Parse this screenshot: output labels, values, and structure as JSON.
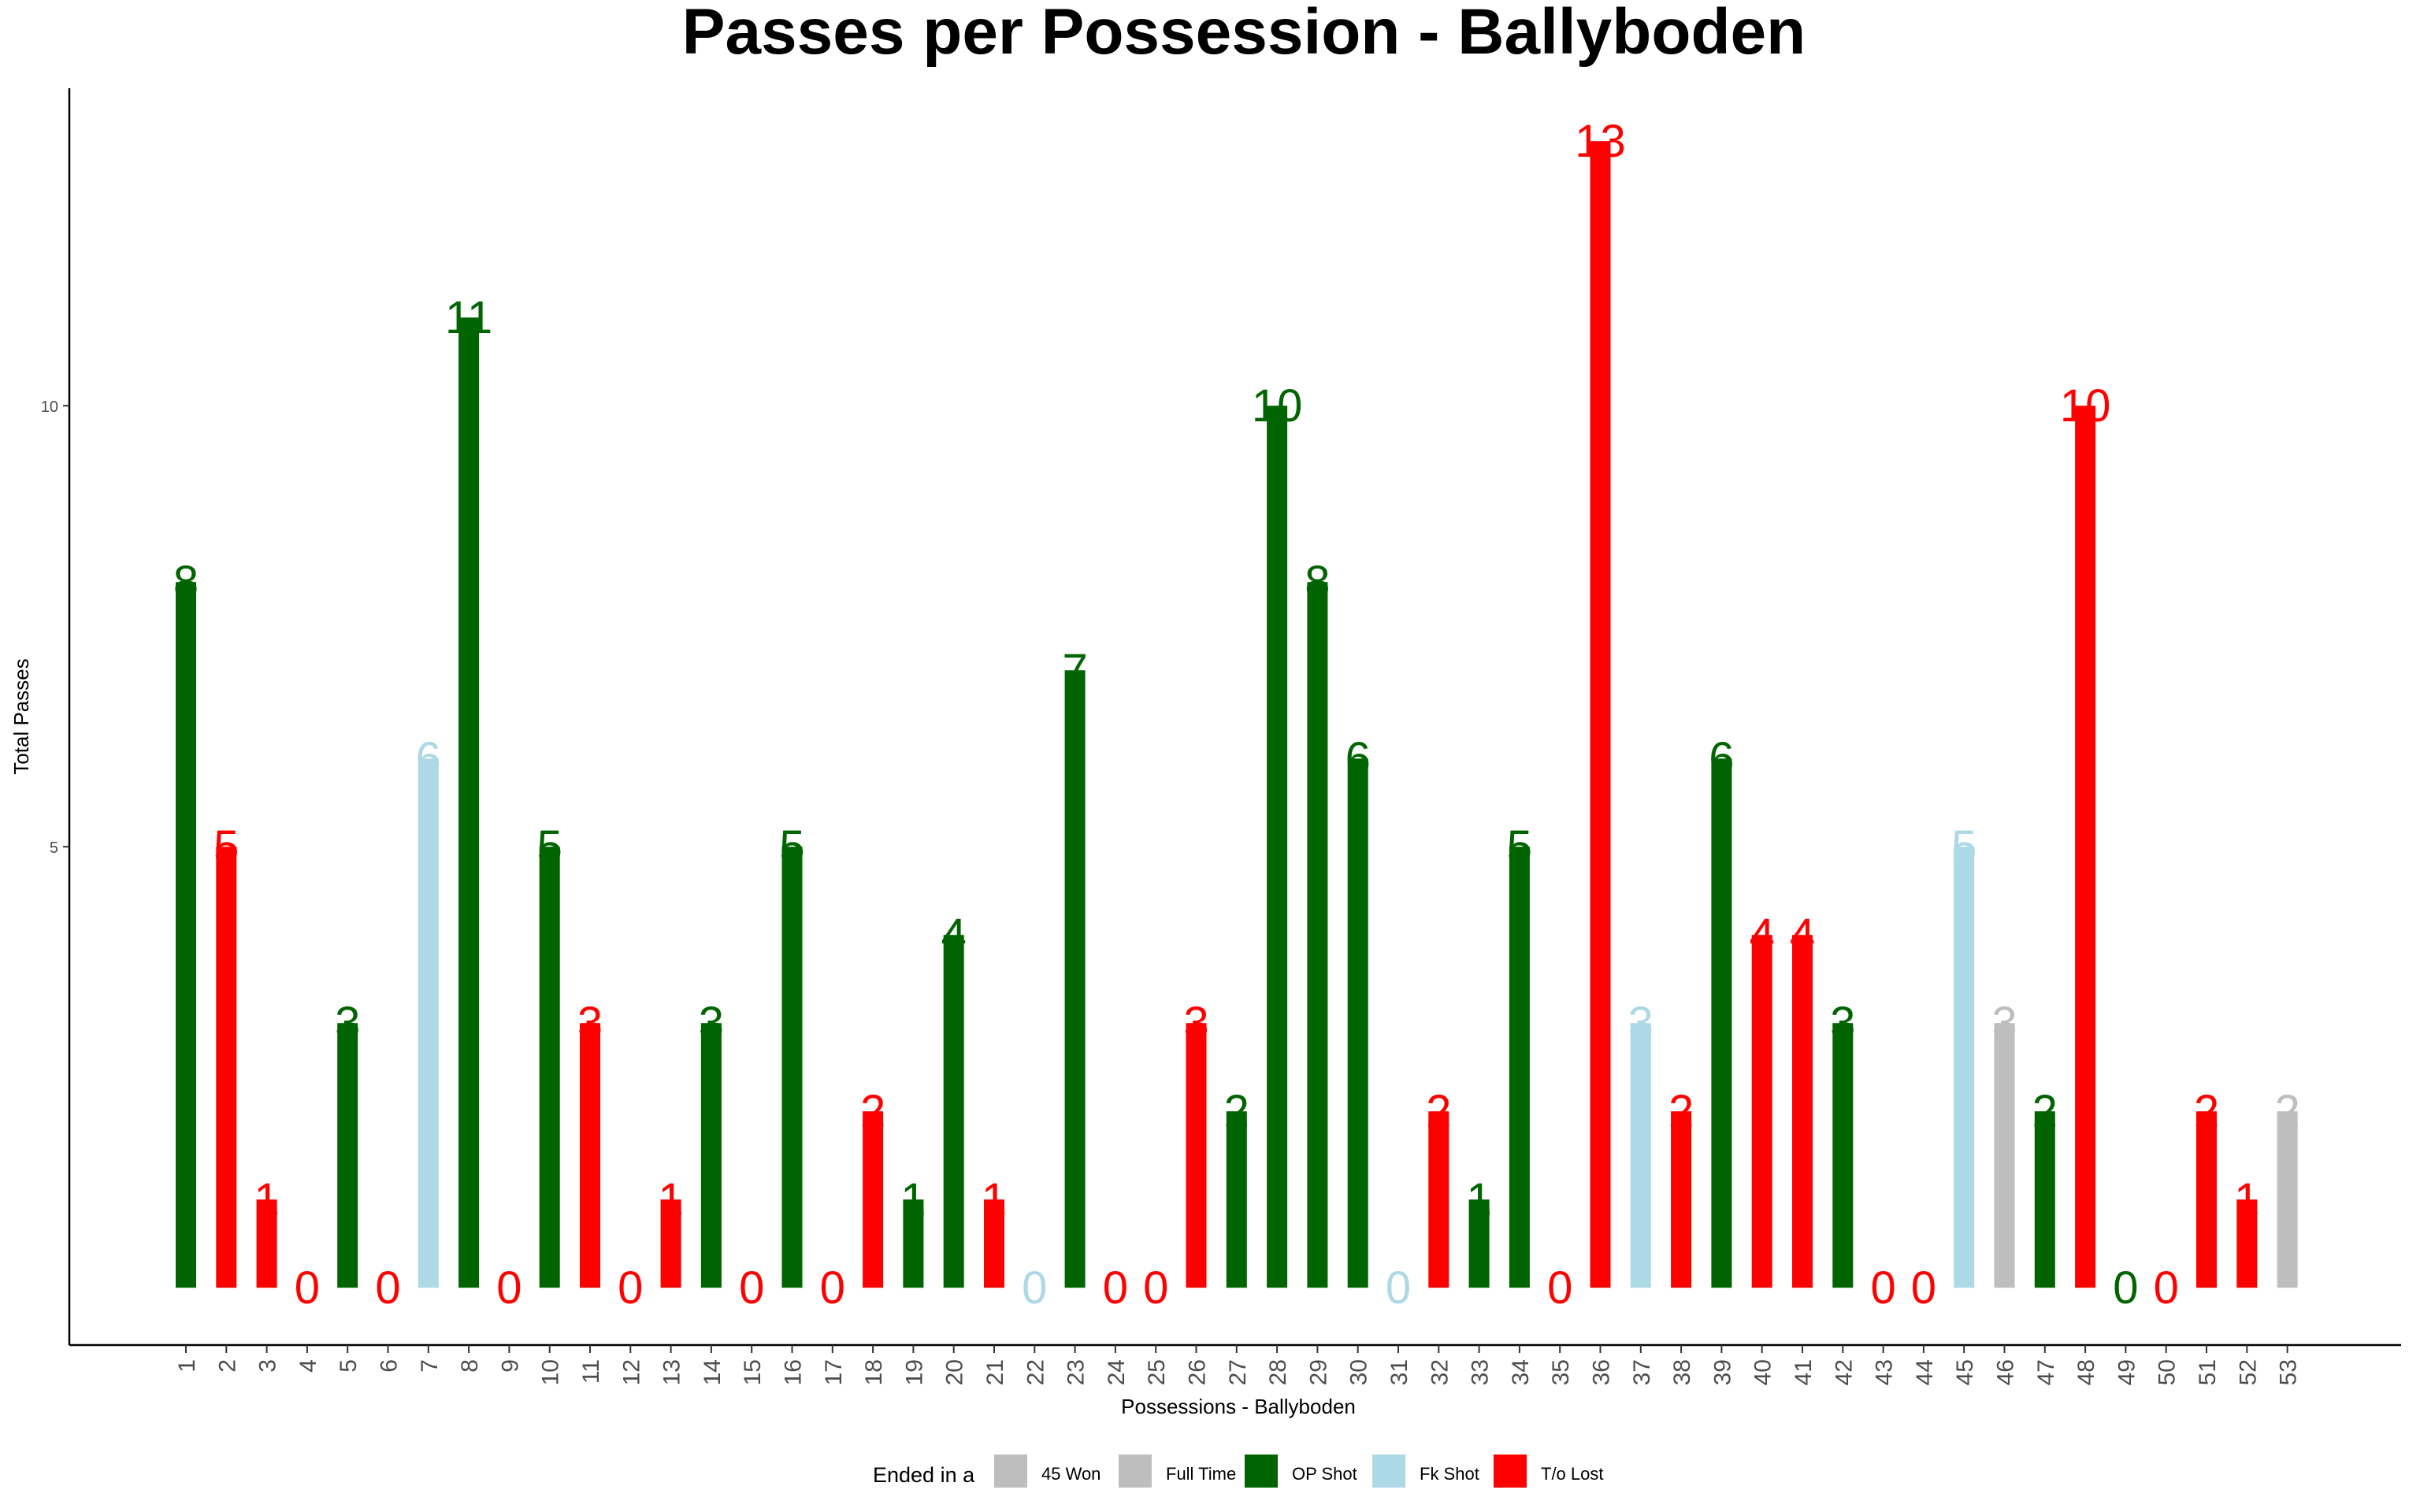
{
  "chart_data": {
    "type": "bar",
    "title": "Passes per Possession - Ballyboden",
    "xlabel": "Possessions - Ballyboden",
    "ylabel": "Total Passes",
    "ylim": [
      -0.65,
      13.6
    ],
    "yticks": [
      5,
      10
    ],
    "grid": false,
    "legend_position": "bottom",
    "legend_title": "Ended in a",
    "legend": [
      {
        "key": "45won",
        "label": "45 Won",
        "color": "#bebebe"
      },
      {
        "key": "fulltime",
        "label": "Full Time",
        "color": "#bebebe"
      },
      {
        "key": "opshot",
        "label": "OP Shot",
        "color": "#006400"
      },
      {
        "key": "fkshot",
        "label": "Fk Shot",
        "color": "#add8e6"
      },
      {
        "key": "tolost",
        "label": "T/o Lost",
        "color": "#ff0000"
      }
    ],
    "categories": [
      "1",
      "2",
      "3",
      "4",
      "5",
      "6",
      "7",
      "8",
      "9",
      "10",
      "11",
      "12",
      "13",
      "14",
      "15",
      "16",
      "17",
      "18",
      "19",
      "20",
      "21",
      "22",
      "23",
      "24",
      "25",
      "26",
      "27",
      "28",
      "29",
      "30",
      "31",
      "32",
      "33",
      "34",
      "35",
      "36",
      "37",
      "38",
      "39",
      "40",
      "41",
      "42",
      "43",
      "44",
      "45",
      "46",
      "47",
      "48",
      "49",
      "50",
      "51",
      "52",
      "53"
    ],
    "values": [
      8,
      5,
      1,
      0,
      3,
      0,
      6,
      11,
      0,
      5,
      3,
      0,
      1,
      3,
      0,
      5,
      0,
      2,
      1,
      4,
      1,
      0,
      7,
      0,
      0,
      3,
      2,
      10,
      8,
      6,
      0,
      2,
      1,
      5,
      0,
      13,
      3,
      2,
      6,
      4,
      4,
      3,
      0,
      0,
      5,
      3,
      2,
      10,
      0,
      0,
      2,
      1,
      2
    ],
    "outcomes": [
      "opshot",
      "tolost",
      "tolost",
      "tolost",
      "opshot",
      "tolost",
      "fkshot",
      "opshot",
      "tolost",
      "opshot",
      "tolost",
      "tolost",
      "tolost",
      "opshot",
      "tolost",
      "opshot",
      "tolost",
      "tolost",
      "opshot",
      "opshot",
      "tolost",
      "fkshot",
      "opshot",
      "tolost",
      "tolost",
      "tolost",
      "opshot",
      "opshot",
      "opshot",
      "opshot",
      "fkshot",
      "tolost",
      "opshot",
      "opshot",
      "tolost",
      "tolost",
      "fkshot",
      "tolost",
      "opshot",
      "tolost",
      "tolost",
      "opshot",
      "tolost",
      "tolost",
      "fkshot",
      "45won",
      "opshot",
      "tolost",
      "opshot",
      "tolost",
      "tolost",
      "tolost",
      "fulltime"
    ]
  }
}
